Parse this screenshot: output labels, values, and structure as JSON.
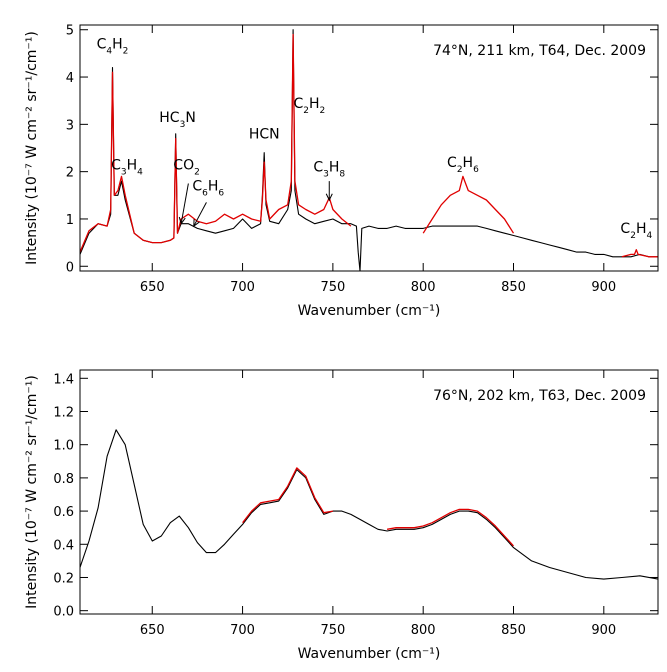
{
  "colors": {
    "observed": "#000000",
    "model": "#e00000"
  },
  "chart_data": [
    {
      "type": "line",
      "annotation": "74°N, 211 km, T64, Dec. 2009",
      "xlabel": "Wavenumber (cm⁻¹)",
      "ylabel": "Intensity (10⁻⁷ W cm⁻² sr⁻¹/cm⁻¹)",
      "xlim": [
        610,
        930
      ],
      "ylim": [
        -0.1,
        5.1
      ],
      "x_ticks": [
        650,
        700,
        750,
        800,
        850,
        900
      ],
      "y_ticks": [
        0,
        1,
        2,
        3,
        4,
        5
      ],
      "labels": [
        {
          "base": "C",
          "s1": "4",
          "mid": "H",
          "s2": "2",
          "x": 628,
          "y": 4.6
        },
        {
          "base": "C",
          "s1": "3",
          "mid": "H",
          "s2": "4",
          "x": 636,
          "y": 2.05
        },
        {
          "base": "HC",
          "s1": "3",
          "mid": "N",
          "s2": "",
          "x": 664,
          "y": 3.05
        },
        {
          "base": "CO",
          "s1": "2",
          "mid": "",
          "s2": "",
          "x": 669,
          "y": 2.05
        },
        {
          "base": "C",
          "s1": "6",
          "mid": "H",
          "s2": "6",
          "x": 681,
          "y": 1.6
        },
        {
          "base": "HCN",
          "s1": "",
          "mid": "",
          "s2": "",
          "x": 712,
          "y": 2.7
        },
        {
          "base": "C",
          "s1": "2",
          "mid": "H",
          "s2": "2",
          "x": 737,
          "y": 3.35
        },
        {
          "base": "C",
          "s1": "3",
          "mid": "H",
          "s2": "8",
          "x": 748,
          "y": 2.0
        },
        {
          "base": "C",
          "s1": "2",
          "mid": "H",
          "s2": "6",
          "x": 822,
          "y": 2.1
        },
        {
          "base": "C",
          "s1": "2",
          "mid": "H",
          "s2": "4",
          "x": 918,
          "y": 0.7
        }
      ],
      "arrows": [
        {
          "from": [
            670,
            1.75
          ],
          "to": [
            666,
            0.9
          ]
        },
        {
          "from": [
            680,
            1.35
          ],
          "to": [
            673,
            0.85
          ]
        },
        {
          "from": [
            748,
            1.8
          ],
          "to": [
            748,
            1.4
          ]
        }
      ],
      "series": [
        {
          "role": "observed",
          "x": [
            610,
            615,
            620,
            625,
            627,
            628,
            629,
            631,
            633,
            635,
            640,
            645,
            650,
            655,
            660,
            662,
            663,
            664,
            666,
            670,
            675,
            680,
            685,
            690,
            695,
            700,
            705,
            710,
            711,
            712,
            713,
            715,
            720,
            725,
            727,
            728,
            729,
            731,
            735,
            740,
            745,
            750,
            755,
            760,
            763,
            764,
            765,
            766,
            770,
            775,
            780,
            785,
            790,
            795,
            800,
            805,
            810,
            815,
            820,
            825,
            830,
            835,
            840,
            845,
            850,
            855,
            860,
            865,
            870,
            875,
            880,
            885,
            890,
            895,
            900,
            905,
            910,
            915,
            920,
            925,
            930
          ],
          "y": [
            0.25,
            0.7,
            0.9,
            0.85,
            1.1,
            4.2,
            1.5,
            1.5,
            1.8,
            1.4,
            0.7,
            0.55,
            0.5,
            0.5,
            0.55,
            0.6,
            2.8,
            0.7,
            0.9,
            0.9,
            0.8,
            0.75,
            0.7,
            0.75,
            0.8,
            1.0,
            0.8,
            0.9,
            1.5,
            2.4,
            1.3,
            0.95,
            0.9,
            1.2,
            1.6,
            5.0,
            1.6,
            1.1,
            1.0,
            0.9,
            0.95,
            1.0,
            0.9,
            0.9,
            0.85,
            0.3,
            -0.1,
            0.8,
            0.85,
            0.8,
            0.8,
            0.85,
            0.8,
            0.8,
            0.8,
            0.85,
            0.85,
            0.85,
            0.85,
            0.85,
            0.85,
            0.8,
            0.75,
            0.7,
            0.65,
            0.6,
            0.55,
            0.5,
            0.45,
            0.4,
            0.35,
            0.3,
            0.3,
            0.25,
            0.25,
            0.2,
            0.2,
            0.2,
            0.25,
            0.2,
            0.2
          ]
        },
        {
          "role": "model",
          "x": [
            610,
            615,
            620,
            625,
            627,
            628,
            629,
            631,
            633,
            635,
            640,
            645,
            650,
            655,
            660,
            662,
            663,
            664,
            666,
            670,
            675,
            680,
            685,
            690,
            695,
            700,
            705,
            710,
            711,
            712,
            713,
            715,
            720,
            725,
            727,
            728,
            729,
            731,
            735,
            740,
            745,
            748,
            750,
            755,
            760,
            780,
            790,
            800,
            805,
            810,
            815,
            820,
            822,
            825,
            830,
            835,
            840,
            845,
            850,
            900,
            910,
            915,
            917,
            918,
            919,
            925,
            930
          ],
          "y": [
            0.3,
            0.75,
            0.9,
            0.85,
            1.2,
            4.1,
            1.5,
            1.6,
            1.9,
            1.5,
            0.7,
            0.55,
            0.5,
            0.5,
            0.55,
            0.6,
            2.7,
            0.7,
            1.0,
            1.1,
            0.95,
            0.9,
            0.95,
            1.1,
            1.0,
            1.1,
            1.0,
            0.95,
            1.4,
            2.2,
            1.4,
            1.0,
            1.2,
            1.3,
            1.8,
            4.9,
            1.8,
            1.3,
            1.2,
            1.1,
            1.2,
            1.45,
            1.2,
            1.0,
            0.85,
            null,
            null,
            0.7,
            1.0,
            1.3,
            1.5,
            1.6,
            1.9,
            1.6,
            1.5,
            1.4,
            1.2,
            1.0,
            0.7,
            null,
            0.2,
            0.25,
            0.25,
            0.35,
            0.25,
            0.2,
            0.2
          ]
        }
      ]
    },
    {
      "type": "line",
      "annotation": "76°N, 202 km, T63, Dec. 2009",
      "xlabel": "Wavenumber (cm⁻¹)",
      "ylabel": "Intensity (10⁻⁷ W cm⁻² sr⁻¹/cm⁻¹)",
      "xlim": [
        610,
        930
      ],
      "ylim": [
        -0.02,
        1.45
      ],
      "x_ticks": [
        650,
        700,
        750,
        800,
        850,
        900
      ],
      "y_ticks": [
        0.0,
        0.2,
        0.4,
        0.6,
        0.8,
        1.0,
        1.2,
        1.4
      ],
      "y_tick_labels": [
        "0.0",
        "0.2",
        "0.4",
        "0.6",
        "0.8",
        "1.0",
        "1.2",
        "1.4"
      ],
      "series": [
        {
          "role": "observed",
          "x": [
            610,
            615,
            620,
            625,
            630,
            635,
            640,
            645,
            650,
            655,
            660,
            665,
            670,
            675,
            680,
            685,
            690,
            695,
            700,
            705,
            710,
            715,
            720,
            725,
            730,
            735,
            740,
            745,
            750,
            755,
            760,
            765,
            770,
            775,
            780,
            785,
            790,
            795,
            800,
            805,
            810,
            815,
            820,
            825,
            830,
            835,
            840,
            845,
            850,
            860,
            870,
            880,
            890,
            900,
            910,
            920,
            930
          ],
          "y": [
            0.26,
            0.42,
            0.62,
            0.93,
            1.09,
            1.0,
            0.76,
            0.52,
            0.42,
            0.45,
            0.53,
            0.57,
            0.5,
            0.41,
            0.35,
            0.35,
            0.4,
            0.46,
            0.52,
            0.59,
            0.64,
            0.65,
            0.66,
            0.74,
            0.85,
            0.8,
            0.67,
            0.58,
            0.6,
            0.6,
            0.58,
            0.55,
            0.52,
            0.49,
            0.48,
            0.49,
            0.49,
            0.49,
            0.5,
            0.52,
            0.55,
            0.58,
            0.6,
            0.6,
            0.59,
            0.55,
            0.5,
            0.44,
            0.38,
            0.3,
            0.26,
            0.23,
            0.2,
            0.19,
            0.2,
            0.21,
            0.19
          ]
        },
        {
          "role": "model",
          "x": [
            700,
            705,
            710,
            715,
            720,
            725,
            730,
            735,
            740,
            745,
            750,
            null,
            780,
            785,
            790,
            795,
            800,
            805,
            810,
            815,
            820,
            825,
            830,
            835,
            840,
            845,
            850
          ],
          "y": [
            0.53,
            0.6,
            0.65,
            0.66,
            0.67,
            0.75,
            0.86,
            0.81,
            0.68,
            0.59,
            0.6,
            null,
            0.49,
            0.5,
            0.5,
            0.5,
            0.51,
            0.53,
            0.56,
            0.59,
            0.61,
            0.61,
            0.6,
            0.56,
            0.51,
            0.45,
            0.39
          ]
        }
      ]
    }
  ]
}
